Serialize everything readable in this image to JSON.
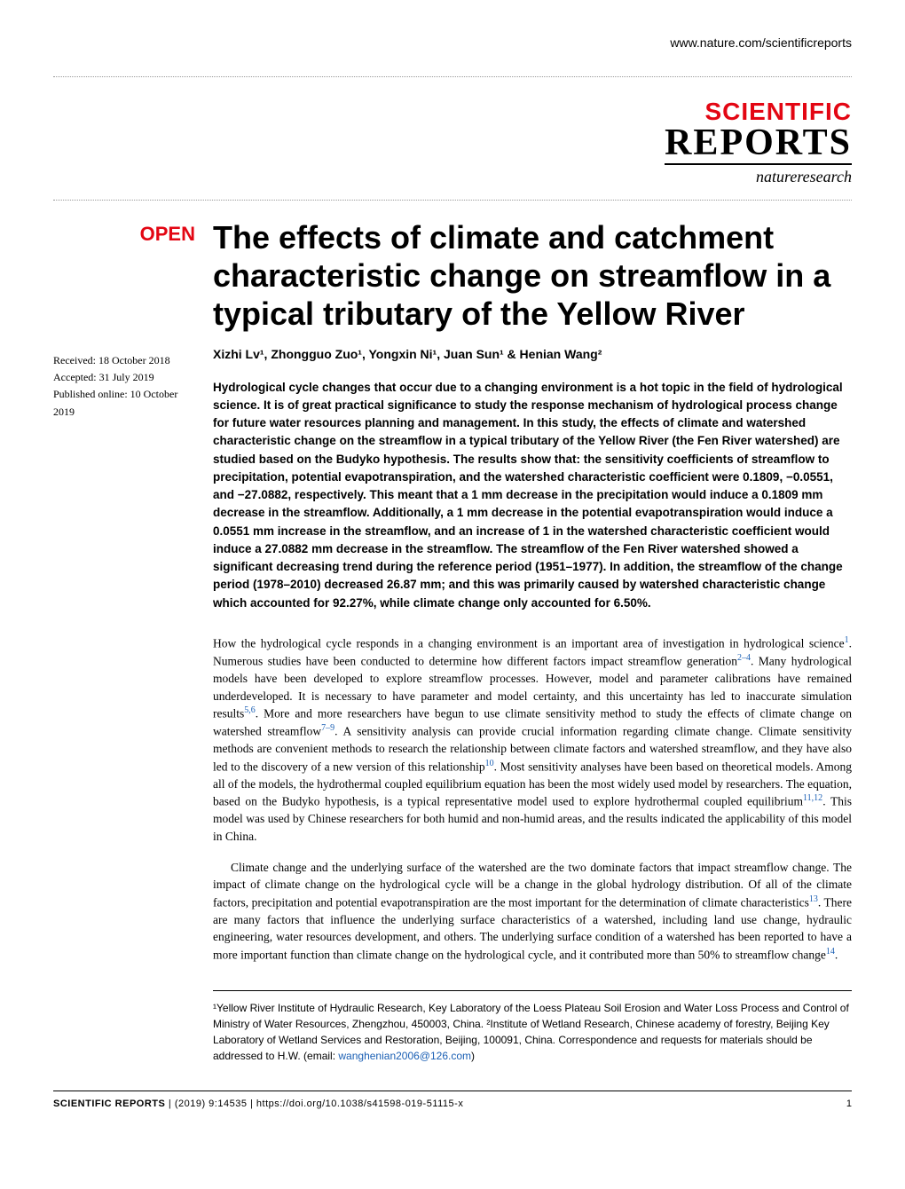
{
  "header": {
    "url": "www.nature.com/scientificreports"
  },
  "logo": {
    "line1": "SCIENTIFIC",
    "line2": "REPORTS",
    "line3": "natureresearch"
  },
  "badge": "OPEN",
  "dates": {
    "received": "Received: 18 October 2018",
    "accepted": "Accepted: 31 July 2019",
    "published": "Published online: 10 October 2019"
  },
  "title": "The effects of climate and catchment characteristic change on streamflow in a typical tributary of the Yellow River",
  "authors_html": "Xizhi Lv¹, Zhongguo Zuo¹, Yongxin Ni¹, Juan Sun¹ & Henian Wang²",
  "abstract": "Hydrological cycle changes that occur due to a changing environment is a hot topic in the field of hydrological science. It is of great practical significance to study the response mechanism of hydrological process change for future water resources planning and management. In this study, the effects of climate and watershed characteristic change on the streamflow in a typical tributary of the Yellow River (the Fen River watershed) are studied based on the Budyko hypothesis. The results show that: the sensitivity coefficients of streamflow to precipitation, potential evapotranspiration, and the watershed characteristic coefficient were 0.1809, −0.0551, and −27.0882, respectively. This meant that a 1 mm decrease in the precipitation would induce a 0.1809 mm decrease in the streamflow. Additionally, a 1 mm decrease in the potential evapotranspiration would induce a 0.0551 mm increase in the streamflow, and an increase of 1 in the watershed characteristic coefficient would induce a 27.0882 mm decrease in the streamflow. The streamflow of the Fen River watershed showed a significant decreasing trend during the reference period (1951–1977). In addition, the streamflow of the change period (1978–2010) decreased 26.87 mm; and this was primarily caused by watershed characteristic change which accounted for 92.27%, while climate change only accounted for 6.50%.",
  "body": {
    "para1_a": "How the hydrological cycle responds in a changing environment is an important area of investigation in hydrological science",
    "para1_b": ". Numerous studies have been conducted to determine how different factors impact streamflow generation",
    "para1_c": ". Many hydrological models have been developed to explore streamflow processes. However, model and parameter calibrations have remained underdeveloped. It is necessary to have parameter and model certainty, and this uncertainty has led to inaccurate simulation results",
    "para1_d": ". More and more researchers have begun to use climate sensitivity method to study the effects of climate change on watershed streamflow",
    "para1_e": ". A sensitivity analysis can provide crucial information regarding climate change. Climate sensitivity methods are convenient methods to research the relationship between climate factors and watershed streamflow, and they have also led to the discovery of a new version of this relationship",
    "para1_f": ". Most sensitivity analyses have been based on theoretical models. Among all of the models, the hydrothermal coupled equilibrium equation has been the most widely used model by researchers. The equation, based on the Budyko hypothesis, is a typical representative model used to explore hydrothermal coupled equilibrium",
    "para1_g": ". This model was used by Chinese researchers for both humid and non-humid areas, and the results indicated the applicability of this model in China.",
    "para2_a": "Climate change and the underlying surface of the watershed are the two dominate factors that impact streamflow change. The impact of climate change on the hydrological cycle will be a change in the global hydrology distribution. Of all of the climate factors, precipitation and potential evapotranspiration are the most important for the determination of climate characteristics",
    "para2_b": ". There are many factors that influence the underlying surface characteristics of a watershed, including land use change, hydraulic engineering, water resources development, and others. The underlying surface condition of a watershed has been reported to have a more important function than climate change on the hydrological cycle, and it contributed more than 50% to streamflow change",
    "para2_c": "."
  },
  "refs": {
    "r1": "1",
    "r2": "2–4",
    "r3": "5,6",
    "r4": "7–9",
    "r5": "10",
    "r6": "11,12",
    "r7": "13",
    "r8": "14"
  },
  "affiliations": {
    "text_a": "¹Yellow River Institute of Hydraulic Research, Key Laboratory of the Loess Plateau Soil Erosion and Water Loss Process and Control of Ministry of Water Resources, Zhengzhou, 450003, China. ²Institute of Wetland Research, Chinese academy of forestry, Beijing Key Laboratory of Wetland Services and Restoration, Beijing, 100091, China. Correspondence and requests for materials should be addressed to H.W. (email: ",
    "email": "wanghenian2006@126.com",
    "text_b": ")"
  },
  "footer": {
    "journal": "SCIENTIFIC REPORTS",
    "sep": " | ",
    "citation": "(2019) 9:14535 | https://doi.org/10.1038/s41598-019-51115-x",
    "page": "1"
  },
  "colors": {
    "brand_red": "#e30613",
    "link_blue": "#1a5fb4",
    "text_black": "#000000",
    "bg_white": "#ffffff"
  }
}
